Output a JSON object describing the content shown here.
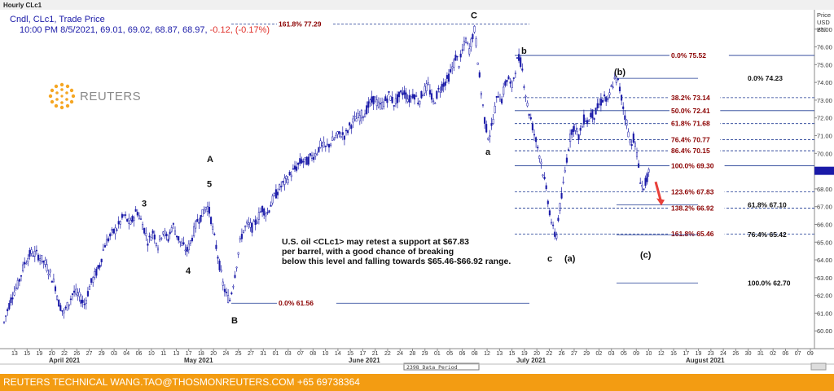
{
  "header": {
    "window_title": "Hourly CLc1",
    "legend_line1": "Cndl, CLc1, Trade Price",
    "legend_line2_prefix": "10:00 PM 8/5/2021, 69.01, 69.02, 68.87, 68.97, ",
    "legend_line2_change": "-0.12, (-0.17%)"
  },
  "logo": {
    "text": "REUTERS"
  },
  "footer": {
    "text": "REUTERS TECHNICAL  WANG.TAO@THOSMONREUTERS.COM  +65 69738364"
  },
  "colors": {
    "candle": "#1a1aa8",
    "level_line": "#1f3a93",
    "fib_text": "#8b0000",
    "footer": "#f39c12",
    "arrow": "#e8403a"
  },
  "chart_data": {
    "type": "candlestick",
    "instrument": "CLc1",
    "axis_title": [
      "Price",
      "USD",
      "Bbl"
    ],
    "ylim": [
      59,
      78
    ],
    "yticks": [
      60,
      61,
      62,
      63,
      64,
      65,
      66,
      67,
      68,
      69,
      70,
      71,
      72,
      73,
      74,
      75,
      76,
      77
    ],
    "current_price_marker": 69.02,
    "x_day_labels": [
      "13",
      "15",
      "19",
      "20",
      "22",
      "26",
      "27",
      "29",
      "03",
      "04",
      "06",
      "10",
      "11",
      "13",
      "17",
      "18",
      "20",
      "24",
      "25",
      "27",
      "31",
      "01",
      "03",
      "07",
      "08",
      "10",
      "14",
      "15",
      "17",
      "21",
      "22",
      "24",
      "28",
      "29",
      "01",
      "05",
      "06",
      "08",
      "12",
      "13",
      "15",
      "19",
      "20",
      "22",
      "26",
      "27",
      "29",
      "02",
      "03",
      "05",
      "09",
      "10",
      "12",
      "16",
      "17",
      "19",
      "23",
      "24",
      "26",
      "30",
      "31",
      "02",
      "06",
      "07",
      "09"
    ],
    "x_month_labels": [
      "April 2021",
      "May 2021",
      "June 2021",
      "July 2021",
      "August 2021"
    ],
    "status_label": "2398 Data Period",
    "price_path": [
      [
        0,
        59.6
      ],
      [
        8,
        61.0
      ],
      [
        15,
        62.0
      ],
      [
        22,
        62.6
      ],
      [
        30,
        63.8
      ],
      [
        38,
        64.4
      ],
      [
        46,
        64.3
      ],
      [
        55,
        63.8
      ],
      [
        62,
        63.2
      ],
      [
        68,
        62.5
      ],
      [
        72,
        61.6
      ],
      [
        78,
        61.0
      ],
      [
        84,
        61.5
      ],
      [
        90,
        62.2
      ],
      [
        96,
        62.0
      ],
      [
        104,
        61.5
      ],
      [
        110,
        62.5
      ],
      [
        116,
        63.1
      ],
      [
        122,
        63.6
      ],
      [
        128,
        64.8
      ],
      [
        136,
        65.4
      ],
      [
        144,
        65.8
      ],
      [
        152,
        66.5
      ],
      [
        160,
        66.0
      ],
      [
        168,
        66.8
      ],
      [
        176,
        65.9
      ],
      [
        182,
        65.0
      ],
      [
        188,
        65.6
      ],
      [
        194,
        64.8
      ],
      [
        200,
        65.7
      ],
      [
        206,
        65.1
      ],
      [
        212,
        66.0
      ],
      [
        218,
        65.3
      ],
      [
        224,
        64.8
      ],
      [
        230,
        64.5
      ],
      [
        236,
        65.3
      ],
      [
        242,
        66.2
      ],
      [
        248,
        66.5
      ],
      [
        254,
        67.1
      ],
      [
        258,
        66.6
      ],
      [
        262,
        65.5
      ],
      [
        266,
        64.6
      ],
      [
        270,
        63.6
      ],
      [
        274,
        62.6
      ],
      [
        278,
        62.0
      ],
      [
        282,
        61.7
      ],
      [
        286,
        62.6
      ],
      [
        290,
        63.6
      ],
      [
        294,
        64.8
      ],
      [
        298,
        65.6
      ],
      [
        304,
        66.0
      ],
      [
        310,
        65.8
      ],
      [
        316,
        66.3
      ],
      [
        322,
        66.9
      ],
      [
        328,
        66.6
      ],
      [
        334,
        67.3
      ],
      [
        340,
        67.8
      ],
      [
        346,
        68.2
      ],
      [
        352,
        68.5
      ],
      [
        358,
        68.9
      ],
      [
        364,
        69.2
      ],
      [
        370,
        69.6
      ],
      [
        376,
        69.5
      ],
      [
        382,
        69.8
      ],
      [
        388,
        70.0
      ],
      [
        394,
        70.5
      ],
      [
        400,
        70.3
      ],
      [
        406,
        70.6
      ],
      [
        412,
        70.9
      ],
      [
        418,
        71.1
      ],
      [
        424,
        71.0
      ],
      [
        430,
        71.6
      ],
      [
        436,
        71.9
      ],
      [
        442,
        72.1
      ],
      [
        448,
        72.3
      ],
      [
        454,
        72.8
      ],
      [
        460,
        73.1
      ],
      [
        466,
        72.6
      ],
      [
        472,
        72.9
      ],
      [
        478,
        73.3
      ],
      [
        484,
        72.8
      ],
      [
        490,
        73.2
      ],
      [
        496,
        73.5
      ],
      [
        502,
        73.0
      ],
      [
        508,
        73.4
      ],
      [
        514,
        72.9
      ],
      [
        520,
        73.5
      ],
      [
        526,
        73.8
      ],
      [
        532,
        72.8
      ],
      [
        538,
        73.5
      ],
      [
        544,
        73.9
      ],
      [
        550,
        74.2
      ],
      [
        556,
        74.9
      ],
      [
        560,
        75.5
      ],
      [
        564,
        75.0
      ],
      [
        568,
        75.8
      ],
      [
        572,
        76.4
      ],
      [
        576,
        75.8
      ],
      [
        580,
        76.6
      ],
      [
        583,
        77.0
      ],
      [
        586,
        75.6
      ],
      [
        589,
        74.2
      ],
      [
        592,
        73.0
      ],
      [
        596,
        71.6
      ],
      [
        600,
        70.9
      ],
      [
        604,
        71.5
      ],
      [
        608,
        72.6
      ],
      [
        612,
        73.4
      ],
      [
        616,
        73.0
      ],
      [
        620,
        73.9
      ],
      [
        624,
        74.3
      ],
      [
        628,
        73.6
      ],
      [
        632,
        74.6
      ],
      [
        636,
        75.4
      ],
      [
        640,
        75.1
      ],
      [
        644,
        73.8
      ],
      [
        648,
        72.6
      ],
      [
        652,
        71.9
      ],
      [
        656,
        71.1
      ],
      [
        660,
        70.4
      ],
      [
        664,
        69.6
      ],
      [
        668,
        68.6
      ],
      [
        672,
        67.6
      ],
      [
        676,
        66.4
      ],
      [
        680,
        65.5
      ],
      [
        683,
        65.3
      ],
      [
        686,
        66.6
      ],
      [
        690,
        67.6
      ],
      [
        694,
        69.1
      ],
      [
        698,
        70.4
      ],
      [
        702,
        71.3
      ],
      [
        706,
        71.6
      ],
      [
        710,
        70.9
      ],
      [
        714,
        71.4
      ],
      [
        718,
        72.1
      ],
      [
        722,
        71.7
      ],
      [
        726,
        72.3
      ],
      [
        730,
        72.1
      ],
      [
        734,
        72.6
      ],
      [
        738,
        72.9
      ],
      [
        742,
        73.2
      ],
      [
        746,
        72.8
      ],
      [
        750,
        73.6
      ],
      [
        754,
        74.1
      ],
      [
        758,
        74.2
      ],
      [
        762,
        73.4
      ],
      [
        766,
        72.4
      ],
      [
        770,
        71.6
      ],
      [
        774,
        70.5
      ],
      [
        778,
        70.9
      ],
      [
        782,
        69.9
      ],
      [
        786,
        68.6
      ],
      [
        790,
        67.9
      ],
      [
        794,
        68.6
      ],
      [
        798,
        68.97
      ]
    ],
    "annotations": [
      {
        "text": "C",
        "x": 581,
        "y": 77.8
      },
      {
        "text": "b",
        "x": 643,
        "y": 75.8
      },
      {
        "text": "a",
        "x": 599,
        "y": 70.1
      },
      {
        "text": "3",
        "x": 177,
        "y": 67.2
      },
      {
        "text": "A",
        "x": 257,
        "y": 69.7
      },
      {
        "text": "5",
        "x": 257,
        "y": 68.3
      },
      {
        "text": "4",
        "x": 231,
        "y": 63.4
      },
      {
        "text": "B",
        "x": 287,
        "y": 60.6
      },
      {
        "text": "(b)",
        "x": 757,
        "y": 74.6
      },
      {
        "text": "c",
        "x": 675,
        "y": 64.1
      },
      {
        "text": "(a)",
        "x": 696,
        "y": 64.1
      },
      {
        "text": "(c)",
        "x": 789,
        "y": 64.3
      }
    ],
    "fib_levels": [
      {
        "label": "161.8% 77.29",
        "price": 77.29,
        "x1": 284,
        "x2": 650,
        "lx": 342,
        "style": "dashed"
      },
      {
        "label": "0.0%    61.56",
        "price": 61.56,
        "x1": 284,
        "x2": 650,
        "lx": 342,
        "style": "solid"
      },
      {
        "label": "0.0%    75.52",
        "price": 75.52,
        "x1": 632,
        "x2": 1000,
        "lx": 824,
        "style": "solid"
      },
      {
        "label": "38.2% 73.14",
        "price": 73.14,
        "x1": 632,
        "x2": 1000,
        "lx": 824,
        "style": "dashed"
      },
      {
        "label": "50.0% 72.41",
        "price": 72.41,
        "x1": 632,
        "x2": 1000,
        "lx": 824,
        "style": "solid"
      },
      {
        "label": "61.8% 71.68",
        "price": 71.68,
        "x1": 632,
        "x2": 1000,
        "lx": 824,
        "style": "dashed"
      },
      {
        "label": "76.4% 70.77",
        "price": 70.77,
        "x1": 632,
        "x2": 1000,
        "lx": 824,
        "style": "dashed"
      },
      {
        "label": "86.4% 70.15",
        "price": 70.15,
        "x1": 632,
        "x2": 1000,
        "lx": 824,
        "style": "dashed"
      },
      {
        "label": "100.0% 69.30",
        "price": 69.3,
        "x1": 632,
        "x2": 1000,
        "lx": 824,
        "style": "solid"
      },
      {
        "label": "123.6% 67.83",
        "price": 67.83,
        "x1": 632,
        "x2": 1000,
        "lx": 824,
        "style": "dashed"
      },
      {
        "label": "138.2% 66.92",
        "price": 66.92,
        "x1": 632,
        "x2": 1000,
        "lx": 824,
        "style": "dashed"
      },
      {
        "label": "161.8% 65.46",
        "price": 65.46,
        "x1": 632,
        "x2": 1000,
        "lx": 824,
        "style": "dashed"
      }
    ],
    "secondary_fib_levels": [
      {
        "label": "0.0%    74.23",
        "price": 74.23,
        "x1": 757,
        "x2": 857,
        "lx": 918
      },
      {
        "label": "61.8%    67.10",
        "price": 67.1,
        "x1": 757,
        "x2": 857,
        "lx": 918
      },
      {
        "label": "76.4%   65.42",
        "price": 65.42,
        "x1": 757,
        "x2": 857,
        "lx": 918
      },
      {
        "label": "100.0% 62.70",
        "price": 62.7,
        "x1": 757,
        "x2": 857,
        "lx": 918
      }
    ],
    "commentary": [
      "U.S. oil <CLc1> may retest a support at $67.83",
      "per barrel, with a good chance of breaking",
      "below this level and falling towards $65.46-$66.92 range."
    ],
    "arrow": {
      "from": [
        805,
        68.4
      ],
      "to": [
        811,
        67.2
      ]
    }
  }
}
